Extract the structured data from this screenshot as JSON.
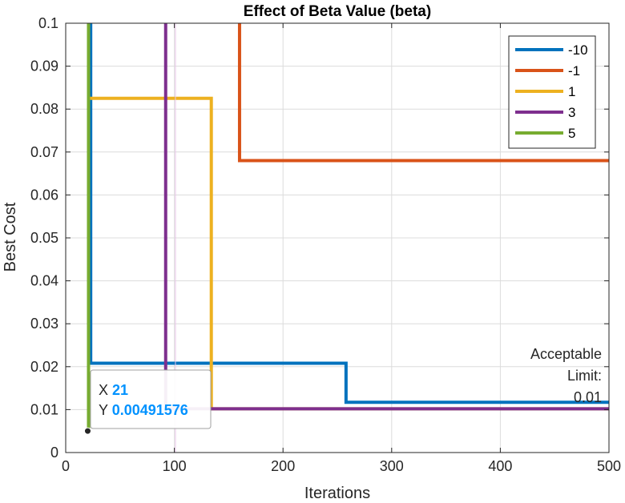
{
  "chart_data": {
    "type": "line",
    "title": "Effect of Beta Value (beta)",
    "xlabel": "Iterations",
    "ylabel": "Best Cost",
    "xlim": [
      0,
      500
    ],
    "ylim": [
      0,
      0.1
    ],
    "xticks": [
      0,
      100,
      200,
      300,
      400,
      500
    ],
    "xtick_labels": [
      "0",
      "100",
      "200",
      "300",
      "400",
      "500"
    ],
    "yticks": [
      0,
      0.01,
      0.02,
      0.03,
      0.04,
      0.05,
      0.06,
      0.07,
      0.08,
      0.09,
      0.1
    ],
    "ytick_labels": [
      "0",
      "0.01",
      "0.02",
      "0.03",
      "0.04",
      "0.05",
      "0.06",
      "0.07",
      "0.08",
      "0.09",
      "0.1"
    ],
    "grid": true,
    "legend_position": "top-right",
    "series": [
      {
        "name": "-10",
        "color": "#0072BD",
        "points": [
          [
            22,
            0.12
          ],
          [
            23,
            0.0208
          ],
          [
            257,
            0.0208
          ],
          [
            258,
            0.0117
          ],
          [
            500,
            0.0117
          ]
        ]
      },
      {
        "name": "-1",
        "color": "#D95319",
        "points": [
          [
            159,
            0.12
          ],
          [
            160,
            0.068
          ],
          [
            500,
            0.068
          ]
        ]
      },
      {
        "name": "1",
        "color": "#EDB120",
        "points": [
          [
            20,
            0.0825
          ],
          [
            133,
            0.0825
          ],
          [
            134,
            0.0102
          ],
          [
            500,
            0.0102
          ]
        ]
      },
      {
        "name": "3",
        "color": "#7E2F8E",
        "points": [
          [
            92,
            0.12
          ],
          [
            92,
            0.0102
          ],
          [
            500,
            0.0102
          ]
        ]
      },
      {
        "name": "5",
        "color": "#77AC30",
        "points": [
          [
            20,
            0.12
          ],
          [
            21,
            0.00491576
          ]
        ]
      }
    ],
    "threshold": {
      "value": 0.01,
      "label_lines": [
        "Acceptable",
        "Limit:",
        "0.01"
      ]
    },
    "datatip": {
      "x_label": "X",
      "x_value": "21",
      "y_label": "Y",
      "y_value": "0.00491576",
      "x": 21,
      "y": 0.00491576
    }
  }
}
